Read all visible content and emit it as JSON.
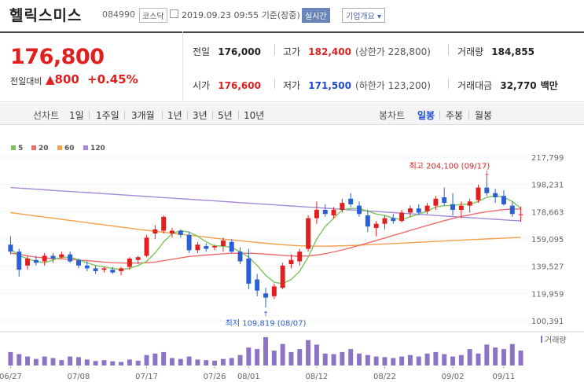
{
  "header": {
    "title": "헬릭스미스",
    "code": "084990",
    "market_badge": "코스닥",
    "datetime": "2019.09.23 09:55",
    "basis": "기준(장중)",
    "realtime_button": "실시간",
    "info_button": "기업개요"
  },
  "summary": {
    "price": "176,800",
    "prev_label": "전일대비",
    "change": "800",
    "change_pct": "+0.45%",
    "rows": {
      "prev_close": {
        "label": "전일",
        "value": "176,000"
      },
      "high": {
        "label": "고가",
        "value": "182,400",
        "sub": "(상한가 228,800)"
      },
      "volume": {
        "label": "거래량",
        "value": "184,855"
      },
      "open": {
        "label": "시가",
        "value": "176,600"
      },
      "low": {
        "label": "저가",
        "value": "171,500",
        "sub": "(하한가 123,200)"
      },
      "amount": {
        "label": "거래대금",
        "value": "32,770",
        "unit": "백만"
      }
    }
  },
  "tabs": {
    "period_label": "선차트",
    "periods": [
      "1일",
      "1주일",
      "3개월",
      "1년",
      "3년",
      "5년",
      "10년"
    ],
    "candle_label": "봉차트",
    "candles": [
      "일봉",
      "주봉",
      "월봉"
    ],
    "active_candle": "일봉"
  },
  "colors": {
    "up": "#e0201f",
    "down": "#2a5fd6",
    "ma5": "#7cc460",
    "ma20": "#ef6b6b",
    "ma60": "#f3a04a",
    "ma120": "#a58ad6",
    "volume": "#8b74c5"
  },
  "chart_data": {
    "type": "candlestick",
    "legend": [
      "5",
      "20",
      "60",
      "120"
    ],
    "y_ticks": [
      "217,799",
      "198,231",
      "178,663",
      "159,095",
      "139,527",
      "119,959",
      "100,391"
    ],
    "ylim": [
      100391,
      217799
    ],
    "x_ticks": [
      "06/27",
      "07/08",
      "07/17",
      "07/26",
      "08/01",
      "08/12",
      "08/22",
      "09/02",
      "09/11"
    ],
    "max_label": "최고 204,100 (09/17)",
    "min_label": "최저 109,819 (08/07)",
    "volume_label": "거래량",
    "candles": [
      {
        "o": 155000,
        "h": 161000,
        "l": 148000,
        "c": 150000
      },
      {
        "o": 150000,
        "h": 152000,
        "l": 132000,
        "c": 137000
      },
      {
        "o": 140000,
        "h": 147000,
        "l": 137000,
        "c": 145000
      },
      {
        "o": 144000,
        "h": 147000,
        "l": 140000,
        "c": 142000
      },
      {
        "o": 143000,
        "h": 149000,
        "l": 140000,
        "c": 147000
      },
      {
        "o": 147000,
        "h": 149000,
        "l": 142000,
        "c": 145000
      },
      {
        "o": 146000,
        "h": 150000,
        "l": 145000,
        "c": 148000
      },
      {
        "o": 148000,
        "h": 150000,
        "l": 142000,
        "c": 143000
      },
      {
        "o": 144000,
        "h": 145000,
        "l": 138000,
        "c": 140000
      },
      {
        "o": 140000,
        "h": 143000,
        "l": 136000,
        "c": 138000
      },
      {
        "o": 138000,
        "h": 140000,
        "l": 134000,
        "c": 136000
      },
      {
        "o": 137000,
        "h": 139000,
        "l": 135000,
        "c": 138000
      },
      {
        "o": 137000,
        "h": 139000,
        "l": 134000,
        "c": 135000
      },
      {
        "o": 136000,
        "h": 139000,
        "l": 133000,
        "c": 138000
      },
      {
        "o": 139000,
        "h": 146000,
        "l": 137000,
        "c": 145000
      },
      {
        "o": 144000,
        "h": 147000,
        "l": 141000,
        "c": 146000
      },
      {
        "o": 147000,
        "h": 162000,
        "l": 146000,
        "c": 160000
      },
      {
        "o": 163000,
        "h": 169000,
        "l": 159000,
        "c": 166000
      },
      {
        "o": 165000,
        "h": 176000,
        "l": 163000,
        "c": 175000
      },
      {
        "o": 163000,
        "h": 167000,
        "l": 160000,
        "c": 165000
      },
      {
        "o": 165000,
        "h": 166000,
        "l": 160000,
        "c": 162000
      },
      {
        "o": 162000,
        "h": 164000,
        "l": 149000,
        "c": 151000
      },
      {
        "o": 151000,
        "h": 157000,
        "l": 149000,
        "c": 155000
      },
      {
        "o": 154000,
        "h": 156000,
        "l": 150000,
        "c": 152000
      },
      {
        "o": 153000,
        "h": 155000,
        "l": 151000,
        "c": 154000
      },
      {
        "o": 154000,
        "h": 160000,
        "l": 150000,
        "c": 158000
      },
      {
        "o": 157000,
        "h": 159000,
        "l": 149000,
        "c": 150000
      },
      {
        "o": 150000,
        "h": 153000,
        "l": 141000,
        "c": 143000
      },
      {
        "o": 145000,
        "h": 152000,
        "l": 123000,
        "c": 127000
      },
      {
        "o": 130000,
        "h": 134000,
        "l": 118000,
        "c": 122000
      },
      {
        "o": 120000,
        "h": 124000,
        "l": 109819,
        "c": 117000
      },
      {
        "o": 118000,
        "h": 127000,
        "l": 116000,
        "c": 125000
      },
      {
        "o": 124000,
        "h": 142000,
        "l": 123000,
        "c": 140000
      },
      {
        "o": 141000,
        "h": 148000,
        "l": 138000,
        "c": 144000
      },
      {
        "o": 143000,
        "h": 152000,
        "l": 140000,
        "c": 150000
      },
      {
        "o": 152000,
        "h": 176000,
        "l": 150000,
        "c": 174000
      },
      {
        "o": 174000,
        "h": 186000,
        "l": 170000,
        "c": 180000
      },
      {
        "o": 180000,
        "h": 184000,
        "l": 175000,
        "c": 177000
      },
      {
        "o": 176000,
        "h": 182000,
        "l": 174000,
        "c": 180000
      },
      {
        "o": 180000,
        "h": 188000,
        "l": 178000,
        "c": 185000
      },
      {
        "o": 188000,
        "h": 192000,
        "l": 182000,
        "c": 184000
      },
      {
        "o": 183000,
        "h": 186000,
        "l": 175000,
        "c": 177000
      },
      {
        "o": 176000,
        "h": 180000,
        "l": 164000,
        "c": 168000
      },
      {
        "o": 167000,
        "h": 172000,
        "l": 161000,
        "c": 170000
      },
      {
        "o": 170000,
        "h": 176000,
        "l": 166000,
        "c": 174000
      },
      {
        "o": 174000,
        "h": 177000,
        "l": 170000,
        "c": 172000
      },
      {
        "o": 172000,
        "h": 180000,
        "l": 171000,
        "c": 178000
      },
      {
        "o": 178000,
        "h": 183000,
        "l": 175000,
        "c": 181000
      },
      {
        "o": 181000,
        "h": 184000,
        "l": 176000,
        "c": 178000
      },
      {
        "o": 179000,
        "h": 185000,
        "l": 177000,
        "c": 183000
      },
      {
        "o": 183000,
        "h": 190000,
        "l": 180000,
        "c": 188000
      },
      {
        "o": 189000,
        "h": 196000,
        "l": 183000,
        "c": 185000
      },
      {
        "o": 184000,
        "h": 192000,
        "l": 176000,
        "c": 180000
      },
      {
        "o": 180000,
        "h": 186000,
        "l": 174000,
        "c": 183000
      },
      {
        "o": 183000,
        "h": 188000,
        "l": 178000,
        "c": 186000
      },
      {
        "o": 187000,
        "h": 198000,
        "l": 185000,
        "c": 196000
      },
      {
        "o": 196000,
        "h": 204100,
        "l": 190000,
        "c": 192000
      },
      {
        "o": 192000,
        "h": 195000,
        "l": 185000,
        "c": 189000
      },
      {
        "o": 190000,
        "h": 194000,
        "l": 183000,
        "c": 184000
      },
      {
        "o": 183000,
        "h": 186000,
        "l": 175000,
        "c": 177000
      },
      {
        "o": 176600,
        "h": 182400,
        "l": 171500,
        "c": 176800
      }
    ],
    "ma5": [
      152000,
      147000,
      145000,
      143000,
      142000,
      144000,
      146000,
      146000,
      144000,
      142000,
      140000,
      139000,
      138000,
      137000,
      138000,
      140000,
      143000,
      149000,
      157000,
      163000,
      165000,
      164000,
      161000,
      157000,
      154000,
      154000,
      153000,
      150000,
      146000,
      140000,
      133000,
      128000,
      127000,
      130000,
      136000,
      146000,
      159000,
      168000,
      174000,
      180000,
      181000,
      181000,
      179000,
      177000,
      176000,
      174000,
      173000,
      175000,
      177000,
      179000,
      182000,
      183000,
      183000,
      184000,
      184000,
      186000,
      189000,
      190000,
      189000,
      186000,
      181000
    ],
    "ma20": [
      149000,
      148000,
      147000,
      146000,
      145500,
      145000,
      144800,
      144500,
      144000,
      143500,
      143000,
      142500,
      142000,
      141800,
      141700,
      141800,
      142000,
      142500,
      143500,
      144500,
      145500,
      146500,
      147000,
      147500,
      148000,
      148500,
      148800,
      148900,
      148800,
      148600,
      148200,
      147800,
      147300,
      146900,
      146700,
      146900,
      147500,
      148500,
      149800,
      151200,
      152800,
      154500,
      156200,
      158000,
      159800,
      161600,
      163400,
      165200,
      167000,
      168800,
      170500,
      172200,
      173800,
      175200,
      176400,
      177600,
      178600,
      179500,
      180200,
      180600,
      180500
    ],
    "ma60": [
      178000,
      177200,
      176400,
      175600,
      174800,
      174000,
      173200,
      172400,
      171600,
      170800,
      170000,
      169200,
      168400,
      167600,
      166800,
      166000,
      165300,
      164600,
      163900,
      163200,
      162500,
      161800,
      161100,
      160400,
      159700,
      159000,
      158400,
      157800,
      157200,
      156600,
      156000,
      155400,
      154900,
      154500,
      154200,
      154000,
      153900,
      153900,
      154000,
      154200,
      154400,
      154600,
      154900,
      155200,
      155500,
      155800,
      156100,
      156400,
      156700,
      157000,
      157300,
      157600,
      157900,
      158200,
      158500,
      158800,
      159100,
      159400,
      159700,
      160000,
      160300
    ],
    "ma120": [
      196000,
      195600,
      195200,
      194800,
      194400,
      194000,
      193600,
      193200,
      192800,
      192400,
      192000,
      191600,
      191200,
      190800,
      190400,
      190000,
      189600,
      189200,
      188800,
      188400,
      188000,
      187600,
      187200,
      186800,
      186400,
      186000,
      185600,
      185200,
      184800,
      184400,
      184000,
      183600,
      183200,
      182800,
      182400,
      182000,
      181600,
      181200,
      180800,
      180400,
      180000,
      179600,
      179200,
      178800,
      178400,
      178000,
      177600,
      177200,
      176800,
      176400,
      176000,
      175600,
      175200,
      174800,
      174400,
      174000,
      173600,
      173200,
      172800,
      172400,
      172000
    ],
    "volume": [
      0.45,
      0.38,
      0.3,
      0.22,
      0.3,
      0.25,
      0.18,
      0.3,
      0.28,
      0.2,
      0.15,
      0.18,
      0.14,
      0.12,
      0.2,
      0.16,
      0.35,
      0.4,
      0.45,
      0.25,
      0.22,
      0.3,
      0.2,
      0.18,
      0.16,
      0.22,
      0.25,
      0.35,
      0.6,
      0.55,
      0.95,
      0.5,
      0.72,
      0.45,
      0.55,
      0.85,
      0.7,
      0.4,
      0.38,
      0.45,
      0.55,
      0.4,
      0.35,
      0.3,
      0.28,
      0.25,
      0.3,
      0.35,
      0.3,
      0.4,
      0.45,
      0.38,
      0.3,
      0.35,
      0.55,
      0.4,
      0.7,
      0.6,
      0.55,
      0.72,
      0.5
    ]
  }
}
